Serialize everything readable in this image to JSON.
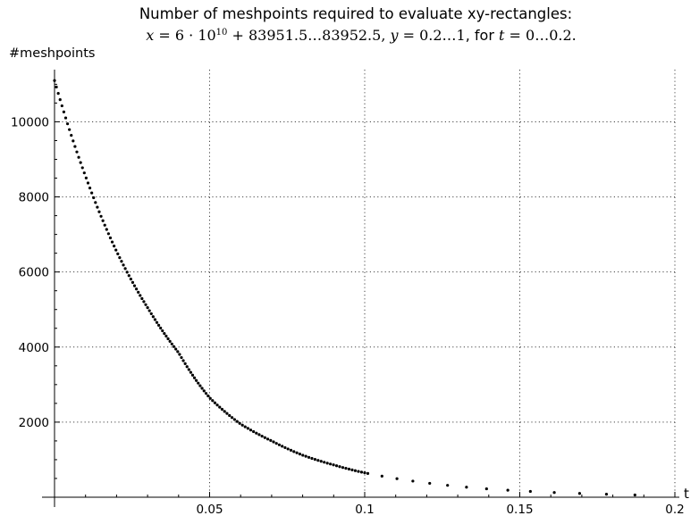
{
  "title": {
    "line1": "Number of meshpoints required to evaluate xy-rectangles:",
    "formula": {
      "x_prefix": "x",
      "eq": " = 6 · 10",
      "exp": "10",
      "x_rest": " + 83951.5…83952.5, ",
      "y_part": "y",
      "y_rest": " = 0.2…1",
      "for_text": ", for ",
      "t_part": "t",
      "t_rest": " = 0…0.2."
    }
  },
  "chart_data": {
    "type": "scatter",
    "title": "Number of meshpoints required to evaluate xy-rectangles: x = 6·10^10 + 83951.5…83952.5, y = 0.2…1, for t = 0…0.2.",
    "xlabel": "t",
    "ylabel": "#meshpoints",
    "xlim": [
      0,
      0.2
    ],
    "ylim": [
      0,
      11200
    ],
    "xticks": [
      0.05,
      0.1,
      0.15,
      0.2
    ],
    "xtick_labels": [
      "0.05",
      "0.1",
      "0.15",
      "0.2"
    ],
    "yticks": [
      2000,
      4000,
      6000,
      8000,
      10000
    ],
    "ytick_labels": [
      "2000",
      "4000",
      "6000",
      "8000",
      "10000"
    ],
    "grid": true,
    "grid_style": "dotted",
    "marker_color": "#000000",
    "series": [
      {
        "x": [
          0,
          0.01,
          0.02,
          0.03,
          0.04,
          0.05,
          0.06,
          0.07,
          0.08,
          0.09,
          0.1,
          0.11,
          0.12,
          0.13,
          0.14,
          0.15,
          0.16,
          0.17,
          0.18,
          0.19,
          0.196
        ],
        "y": [
          11100,
          8550,
          6550,
          5050,
          3850,
          2650,
          1950,
          1500,
          1120,
          860,
          650,
          500,
          380,
          290,
          220,
          170,
          130,
          100,
          75,
          55,
          45
        ]
      }
    ]
  }
}
